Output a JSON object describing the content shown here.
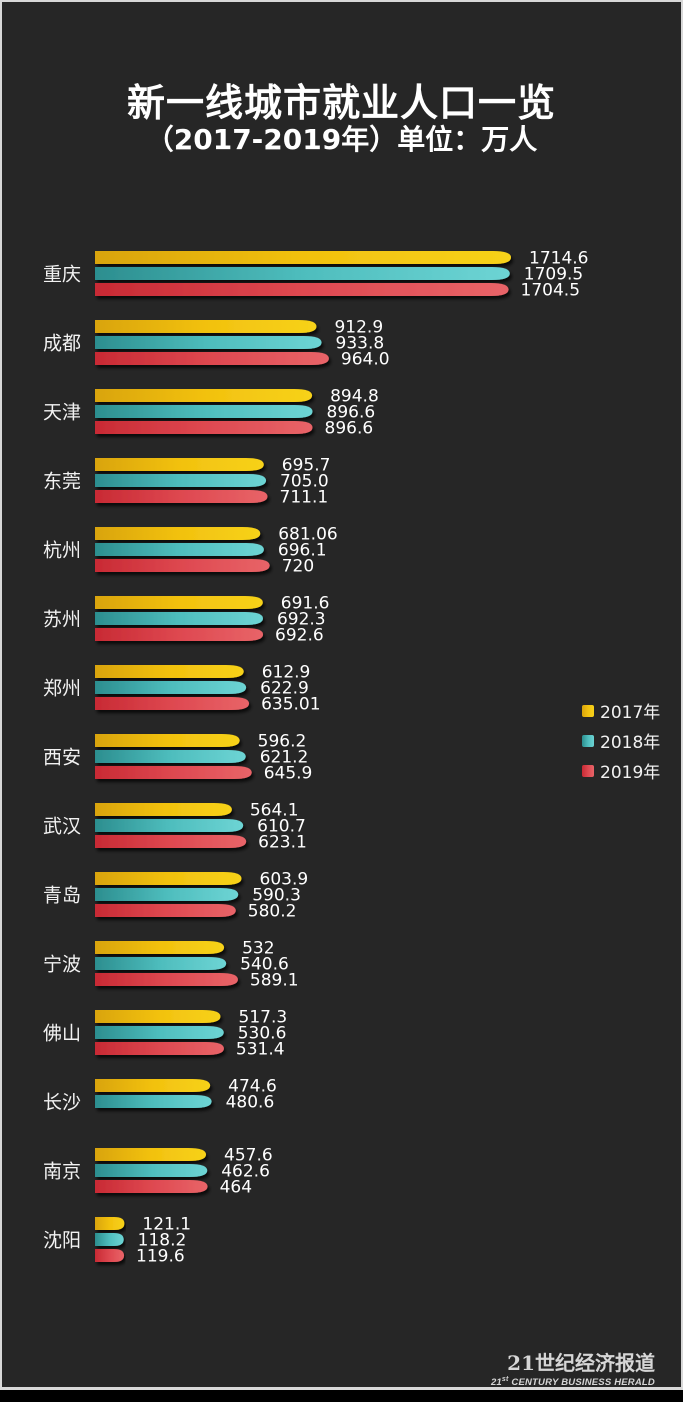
{
  "chart_data": {
    "type": "bar",
    "orientation": "horizontal",
    "title": "新一线城市就业人口一览",
    "subtitle": "（2017-2019年）单位：万人",
    "xlabel": "",
    "ylabel": "",
    "unit": "万人",
    "grid": false,
    "legend_position": "right",
    "categories": [
      "重庆",
      "成都",
      "天津",
      "东莞",
      "杭州",
      "苏州",
      "郑州",
      "西安",
      "武汉",
      "青岛",
      "宁波",
      "佛山",
      "长沙",
      "南京",
      "沈阳"
    ],
    "series": [
      {
        "name": "2017年",
        "color": "#f2c312",
        "values": [
          1714.6,
          912.9,
          894.8,
          695.7,
          681.06,
          691.6,
          612.9,
          596.2,
          564.1,
          603.9,
          532,
          517.3,
          474.6,
          457.6,
          121.1
        ],
        "labels": [
          "1714.6",
          "912.9",
          "894.8",
          "695.7",
          "681.06",
          "691.6",
          "612.9",
          "596.2",
          "564.1",
          "603.9",
          "532",
          "517.3",
          "474.6",
          "457.6",
          "121.1"
        ]
      },
      {
        "name": "2018年",
        "color": "#4fc4c4",
        "values": [
          1709.5,
          933.8,
          896.6,
          705.0,
          696.1,
          692.3,
          622.9,
          621.2,
          610.7,
          590.3,
          540.6,
          530.6,
          480.6,
          462.6,
          118.2
        ],
        "labels": [
          "1709.5",
          "933.8",
          "896.6",
          "705.0",
          "696.1",
          "692.3",
          "622.9",
          "621.2",
          "610.7",
          "590.3",
          "540.6",
          "530.6",
          "480.6",
          "462.6",
          "118.2"
        ]
      },
      {
        "name": "2019年",
        "color": "#e0474f",
        "values": [
          1704.5,
          964.0,
          896.6,
          711.1,
          720,
          692.6,
          635.01,
          645.9,
          623.1,
          580.2,
          589.1,
          531.4,
          null,
          464,
          119.6
        ],
        "labels": [
          "1704.5",
          "964.0",
          "896.6",
          "711.1",
          "720",
          "692.6",
          "635.01",
          "645.9",
          "623.1",
          "580.2",
          "589.1",
          "531.4",
          null,
          "464",
          "119.6"
        ]
      }
    ],
    "xlim": [
      0,
      1714.6
    ]
  },
  "footer": {
    "brand_cn": "21世纪经济报道",
    "brand_en_prefix": "21",
    "brand_en_sup": "st",
    "brand_en_rest": " CENTURY BUSINESS HERALD"
  },
  "colors": {
    "background": "#262626",
    "text": "#ffffff"
  }
}
